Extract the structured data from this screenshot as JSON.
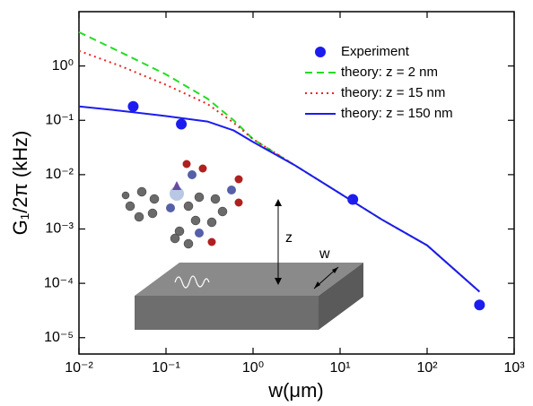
{
  "chart_data": {
    "type": "line",
    "xlabel": "w(μm)",
    "ylabel": "G₁/2π (kHz)",
    "xscale": "log",
    "yscale": "log",
    "xlim": [
      0.01,
      1000
    ],
    "ylim": [
      5e-06,
      10
    ],
    "xticks": [
      {
        "value": 0.01,
        "label": "10⁻²"
      },
      {
        "value": 0.1,
        "label": "10⁻¹"
      },
      {
        "value": 1,
        "label": "10⁰"
      },
      {
        "value": 10,
        "label": "10¹"
      },
      {
        "value": 100,
        "label": "10²"
      },
      {
        "value": 1000,
        "label": "10³"
      }
    ],
    "yticks": [
      {
        "value": 1e-05,
        "label": "10⁻⁵"
      },
      {
        "value": 0.0001,
        "label": "10⁻⁴"
      },
      {
        "value": 0.001,
        "label": "10⁻³"
      },
      {
        "value": 0.01,
        "label": "10⁻²"
      },
      {
        "value": 0.1,
        "label": "10⁻¹"
      },
      {
        "value": 1,
        "label": "10⁰"
      }
    ],
    "legend": "upper right",
    "series": [
      {
        "name": "Experiment",
        "type": "scatter",
        "color": "#1c1cf0",
        "x": [
          0.042,
          0.15,
          14,
          400
        ],
        "values": [
          0.18,
          0.085,
          0.0035,
          4e-05
        ]
      },
      {
        "name": "theory: z = 2 nm",
        "type": "line",
        "line_style": "dashed",
        "color": "#22dd22",
        "x": [
          0.01,
          0.03,
          0.1,
          0.3,
          0.6,
          1,
          3,
          10,
          30,
          100,
          400
        ],
        "values": [
          4.2,
          1.8,
          0.7,
          0.25,
          0.1,
          0.045,
          0.015,
          0.0045,
          0.0015,
          0.0005,
          7e-05
        ]
      },
      {
        "name": "theory: z = 15 nm",
        "type": "line",
        "line_style": "dotted",
        "color": "#ee2222",
        "x": [
          0.01,
          0.03,
          0.1,
          0.3,
          0.6,
          1,
          3,
          10,
          30,
          100,
          400
        ],
        "values": [
          1.9,
          1.0,
          0.45,
          0.2,
          0.09,
          0.045,
          0.015,
          0.0045,
          0.0015,
          0.0005,
          7e-05
        ]
      },
      {
        "name": "theory: z = 150 nm",
        "type": "line",
        "line_style": "solid",
        "color": "#1c1cf0",
        "x": [
          0.01,
          0.03,
          0.1,
          0.3,
          0.6,
          1,
          3,
          10,
          30,
          100,
          400
        ],
        "values": [
          0.18,
          0.15,
          0.12,
          0.095,
          0.065,
          0.04,
          0.015,
          0.0045,
          0.0015,
          0.0005,
          7e-05
        ]
      }
    ],
    "annotations": [
      "z",
      "w"
    ]
  }
}
